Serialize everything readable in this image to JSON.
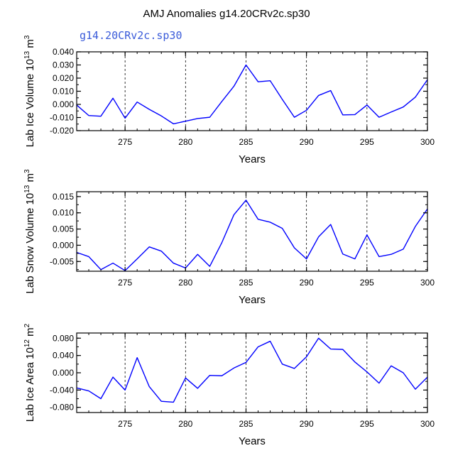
{
  "title": "AMJ Anomalies g14.20CRv2c.sp30",
  "subtitle": "g14.20CRv2c.sp30",
  "line_color": "#0000ff",
  "chart_data": [
    {
      "type": "line",
      "title": "",
      "xlabel": "Years",
      "ylabel": "Lab Ice Volume 10^13 m^3",
      "ylabel_parts": {
        "base": "Lab Ice Volume 10",
        "exp1": "13",
        "mid": " m",
        "exp2": "3"
      },
      "xlim": [
        271,
        300
      ],
      "ylim": [
        -0.02,
        0.04
      ],
      "xticks": [
        275,
        280,
        285,
        290,
        295,
        300
      ],
      "xtick_labels": [
        "275",
        "280",
        "285",
        "290",
        "295",
        "300"
      ],
      "yticks": [
        -0.02,
        -0.01,
        0.0,
        0.01,
        0.02,
        0.03,
        0.04
      ],
      "ytick_labels": [
        "-0.020",
        "-0.010",
        "0.000",
        "0.010",
        "0.020",
        "0.030",
        "0.040"
      ],
      "grid_x": true,
      "x": [
        271,
        272,
        273,
        274,
        275,
        276,
        277,
        278,
        279,
        280,
        281,
        282,
        283,
        284,
        285,
        286,
        287,
        288,
        289,
        290,
        291,
        292,
        293,
        294,
        295,
        296,
        297,
        298,
        299,
        300
      ],
      "values": [
        -0.0005,
        -0.0085,
        -0.009,
        0.0047,
        -0.0105,
        0.0018,
        -0.0038,
        -0.0088,
        -0.0148,
        -0.0128,
        -0.0108,
        -0.0098,
        0.0022,
        0.0138,
        0.03,
        0.0172,
        0.018,
        0.0038,
        -0.0098,
        -0.0045,
        0.0068,
        0.0105,
        -0.008,
        -0.0078,
        -0.0005,
        -0.0098,
        -0.0058,
        -0.002,
        0.0055,
        0.0188
      ]
    },
    {
      "type": "line",
      "title": "",
      "xlabel": "Years",
      "ylabel": "Lab Snow Volume 10^13 m^3",
      "ylabel_parts": {
        "base": "Lab Snow Volume 10",
        "exp1": "13",
        "mid": " m",
        "exp2": "3"
      },
      "xlim": [
        271,
        300
      ],
      "ylim": [
        -0.008,
        0.0165
      ],
      "xticks": [
        275,
        280,
        285,
        290,
        295,
        300
      ],
      "xtick_labels": [
        "275",
        "280",
        "285",
        "290",
        "295",
        "300"
      ],
      "yticks": [
        -0.005,
        0.0,
        0.005,
        0.01,
        0.015
      ],
      "ytick_labels": [
        "-0.005",
        "0.000",
        "0.005",
        "0.010",
        "0.015"
      ],
      "grid_x": true,
      "x": [
        271,
        272,
        273,
        274,
        275,
        276,
        277,
        278,
        279,
        280,
        281,
        282,
        283,
        284,
        285,
        286,
        287,
        288,
        289,
        290,
        291,
        292,
        293,
        294,
        295,
        296,
        297,
        298,
        299,
        300
      ],
      "values": [
        -0.0022,
        -0.0035,
        -0.0075,
        -0.0055,
        -0.0078,
        -0.0042,
        -0.0005,
        -0.0018,
        -0.0055,
        -0.007,
        -0.0028,
        -0.0065,
        0.0008,
        0.0094,
        0.0139,
        0.008,
        0.0071,
        0.0052,
        -0.0008,
        -0.0042,
        0.0026,
        0.0064,
        -0.0027,
        -0.0042,
        0.0032,
        -0.0035,
        -0.0028,
        -0.0012,
        0.0058,
        0.0112
      ]
    },
    {
      "type": "line",
      "title": "",
      "xlabel": "Years",
      "ylabel": "Lab Ice Area 10^12 m^2",
      "ylabel_parts": {
        "base": "Lab Ice Area 10",
        "exp1": "12",
        "mid": " m",
        "exp2": "2"
      },
      "xlim": [
        271,
        300
      ],
      "ylim": [
        -0.092,
        0.092
      ],
      "xticks": [
        275,
        280,
        285,
        290,
        295,
        300
      ],
      "xtick_labels": [
        "275",
        "280",
        "285",
        "290",
        "295",
        "300"
      ],
      "yticks": [
        -0.08,
        -0.04,
        0.0,
        0.04,
        0.08
      ],
      "ytick_labels": [
        "-0.080",
        "-0.040",
        "0.000",
        "0.040",
        "0.080"
      ],
      "grid_x": true,
      "x": [
        271,
        272,
        273,
        274,
        275,
        276,
        277,
        278,
        279,
        280,
        281,
        282,
        283,
        284,
        285,
        286,
        287,
        288,
        289,
        290,
        291,
        292,
        293,
        294,
        295,
        296,
        297,
        298,
        299,
        300
      ],
      "values": [
        -0.035,
        -0.042,
        -0.06,
        -0.01,
        -0.04,
        0.035,
        -0.032,
        -0.066,
        -0.068,
        -0.012,
        -0.036,
        -0.006,
        -0.007,
        0.011,
        0.024,
        0.06,
        0.073,
        0.02,
        0.01,
        0.037,
        0.08,
        0.055,
        0.054,
        0.025,
        0.002,
        -0.024,
        0.016,
        0.0,
        -0.038,
        -0.01
      ]
    }
  ]
}
